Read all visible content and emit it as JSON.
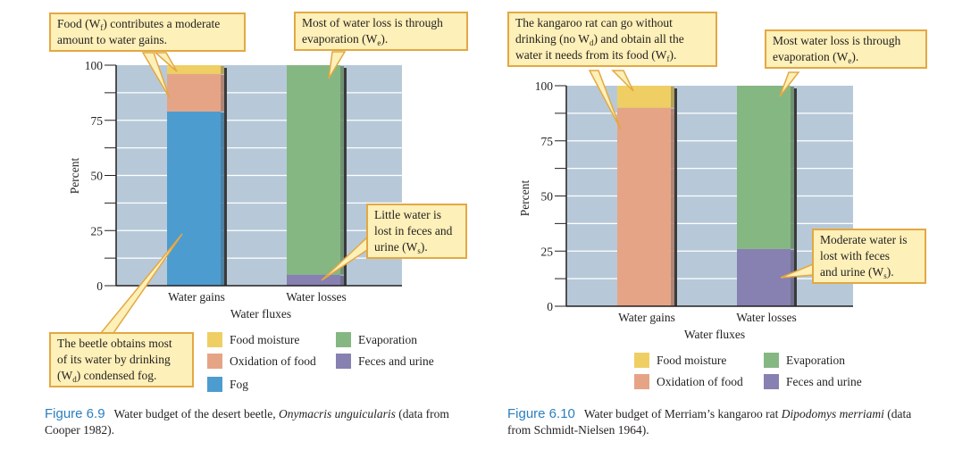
{
  "colors": {
    "fog": "#4d9ccf",
    "oxidation": "#e6a487",
    "food_moisture": "#efcf63",
    "evaporation": "#85b782",
    "feces": "#8681b0",
    "plot_bg": "#b7c9d8",
    "callout_bg": "#fdf0b8",
    "callout_border": "#e3a843",
    "figure_label": "#2a7fc0"
  },
  "chart_data": [
    {
      "type": "bar",
      "stacked": true,
      "title": "Figure 6.9",
      "ylabel": "Percent",
      "xlabel": "Water fluxes",
      "ylim": [
        0,
        100
      ],
      "yticks": [
        0,
        25,
        50,
        75,
        100
      ],
      "categories": [
        "Water gains",
        "Water losses"
      ],
      "series": [
        {
          "name": "Fog",
          "key": "fog",
          "values": [
            79,
            0
          ]
        },
        {
          "name": "Oxidation of food",
          "key": "oxidation",
          "values": [
            17,
            0
          ]
        },
        {
          "name": "Food moisture",
          "key": "food_moisture",
          "values": [
            4,
            0
          ]
        },
        {
          "name": "Feces and urine",
          "key": "feces",
          "values": [
            0,
            5
          ]
        },
        {
          "name": "Evaporation",
          "key": "evaporation",
          "values": [
            0,
            95
          ]
        }
      ]
    },
    {
      "type": "bar",
      "stacked": true,
      "title": "Figure 6.10",
      "ylabel": "Percent",
      "xlabel": "Water fluxes",
      "ylim": [
        0,
        100
      ],
      "yticks": [
        0,
        25,
        50,
        75,
        100
      ],
      "categories": [
        "Water gains",
        "Water losses"
      ],
      "series": [
        {
          "name": "Oxidation of food",
          "key": "oxidation",
          "values": [
            90,
            0
          ]
        },
        {
          "name": "Food moisture",
          "key": "food_moisture",
          "values": [
            10,
            0
          ]
        },
        {
          "name": "Feces and urine",
          "key": "feces",
          "values": [
            0,
            26
          ]
        },
        {
          "name": "Evaporation",
          "key": "evaporation",
          "values": [
            0,
            74
          ]
        }
      ]
    }
  ],
  "callouts": [
    {
      "lines": [
        [
          {
            "t": "Food (W"
          },
          {
            "s": "f"
          },
          {
            "t": ") contributes a moderate"
          }
        ],
        [
          {
            "t": "amount to water gains."
          }
        ]
      ]
    },
    {
      "lines": [
        [
          {
            "t": "Most of water loss is through"
          }
        ],
        [
          {
            "t": "evaporation (W"
          },
          {
            "s": "e"
          },
          {
            "t": ")."
          }
        ]
      ]
    },
    {
      "lines": [
        [
          {
            "t": "Little water is"
          }
        ],
        [
          {
            "t": "lost in feces and"
          }
        ],
        [
          {
            "t": "urine (W"
          },
          {
            "s": "s"
          },
          {
            "t": ")."
          }
        ]
      ]
    },
    {
      "lines": [
        [
          {
            "t": "The beetle obtains most"
          }
        ],
        [
          {
            "t": "of its water by drinking"
          }
        ],
        [
          {
            "t": "(W"
          },
          {
            "s": "d"
          },
          {
            "t": ") condensed fog."
          }
        ]
      ]
    },
    {
      "lines": [
        [
          {
            "t": "The kangaroo rat can go without"
          }
        ],
        [
          {
            "t": "drinking (no W"
          },
          {
            "s": "d"
          },
          {
            "t": ") and obtain all the"
          }
        ],
        [
          {
            "t": "water it needs from its food (W"
          },
          {
            "s": "f"
          },
          {
            "t": ")."
          }
        ]
      ]
    },
    {
      "lines": [
        [
          {
            "t": "Most water loss is through"
          }
        ],
        [
          {
            "t": "evaporation (W"
          },
          {
            "s": "e"
          },
          {
            "t": ")."
          }
        ]
      ]
    },
    {
      "lines": [
        [
          {
            "t": "Moderate water is"
          }
        ],
        [
          {
            "t": "lost with feces"
          }
        ],
        [
          {
            "t": "and urine (W"
          },
          {
            "s": "s"
          },
          {
            "t": ")."
          }
        ]
      ]
    }
  ],
  "legends": [
    [
      {
        "label": "Food moisture",
        "key": "food_moisture"
      },
      {
        "label": "Oxidation of food",
        "key": "oxidation"
      },
      {
        "label": "Fog",
        "key": "fog"
      },
      {
        "label": "Evaporation",
        "key": "evaporation"
      },
      {
        "label": "Feces and urine",
        "key": "feces"
      }
    ],
    [
      {
        "label": "Food moisture",
        "key": "food_moisture"
      },
      {
        "label": "Oxidation of food",
        "key": "oxidation"
      },
      {
        "label": "Evaporation",
        "key": "evaporation"
      },
      {
        "label": "Feces and urine",
        "key": "feces"
      }
    ]
  ],
  "captions": [
    {
      "label": "Figure 6.9",
      "text": "Water budget of the desert beetle, ",
      "italic": "Onymacris unguicularis",
      "end": " (data from Cooper 1982)."
    },
    {
      "label": "Figure 6.10",
      "text": "Water budget of Merriam’s kangaroo rat ",
      "italic": "Dipodomys merriami",
      "end": " (data from Schmidt-Nielsen 1964)."
    }
  ]
}
